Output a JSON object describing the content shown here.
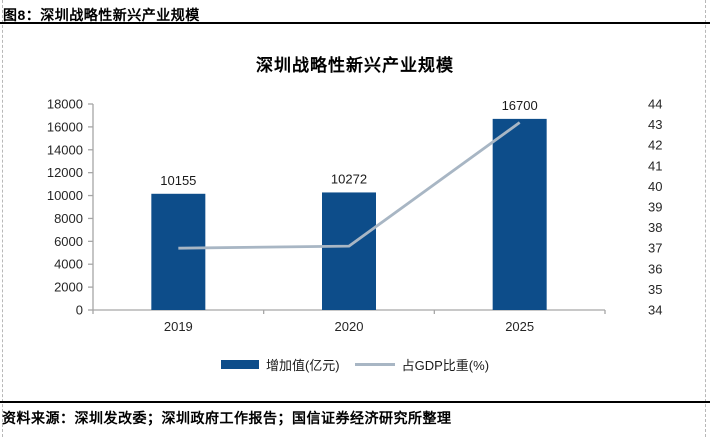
{
  "header": {
    "figure_label": "图8：深圳战略性新兴产业规模"
  },
  "chart_data": {
    "type": "bar",
    "subtype": "bar-line-combo",
    "title": "深圳战略性新兴产业规模",
    "categories": [
      "2019",
      "2020",
      "2025"
    ],
    "series": [
      {
        "name": "增加值(亿元)",
        "type": "bar",
        "axis": "left",
        "values": [
          10155,
          10272,
          16700
        ],
        "color": "#0d4d8a"
      },
      {
        "name": "占GDP比重(%)",
        "type": "line",
        "axis": "right",
        "values": [
          37.0,
          37.1,
          43.1
        ],
        "color": "#a8b6c4"
      }
    ],
    "left_axis": {
      "min": 0,
      "max": 18000,
      "step": 2000
    },
    "right_axis": {
      "min": 34,
      "max": 44,
      "step": 1
    },
    "grid": false,
    "legend_position": "bottom",
    "colors": {
      "axis": "#a6a6a6",
      "text": "#262626"
    }
  },
  "footer": {
    "source": "资料来源：深圳发改委；深圳政府工作报告；国信证券经济研究所整理"
  }
}
